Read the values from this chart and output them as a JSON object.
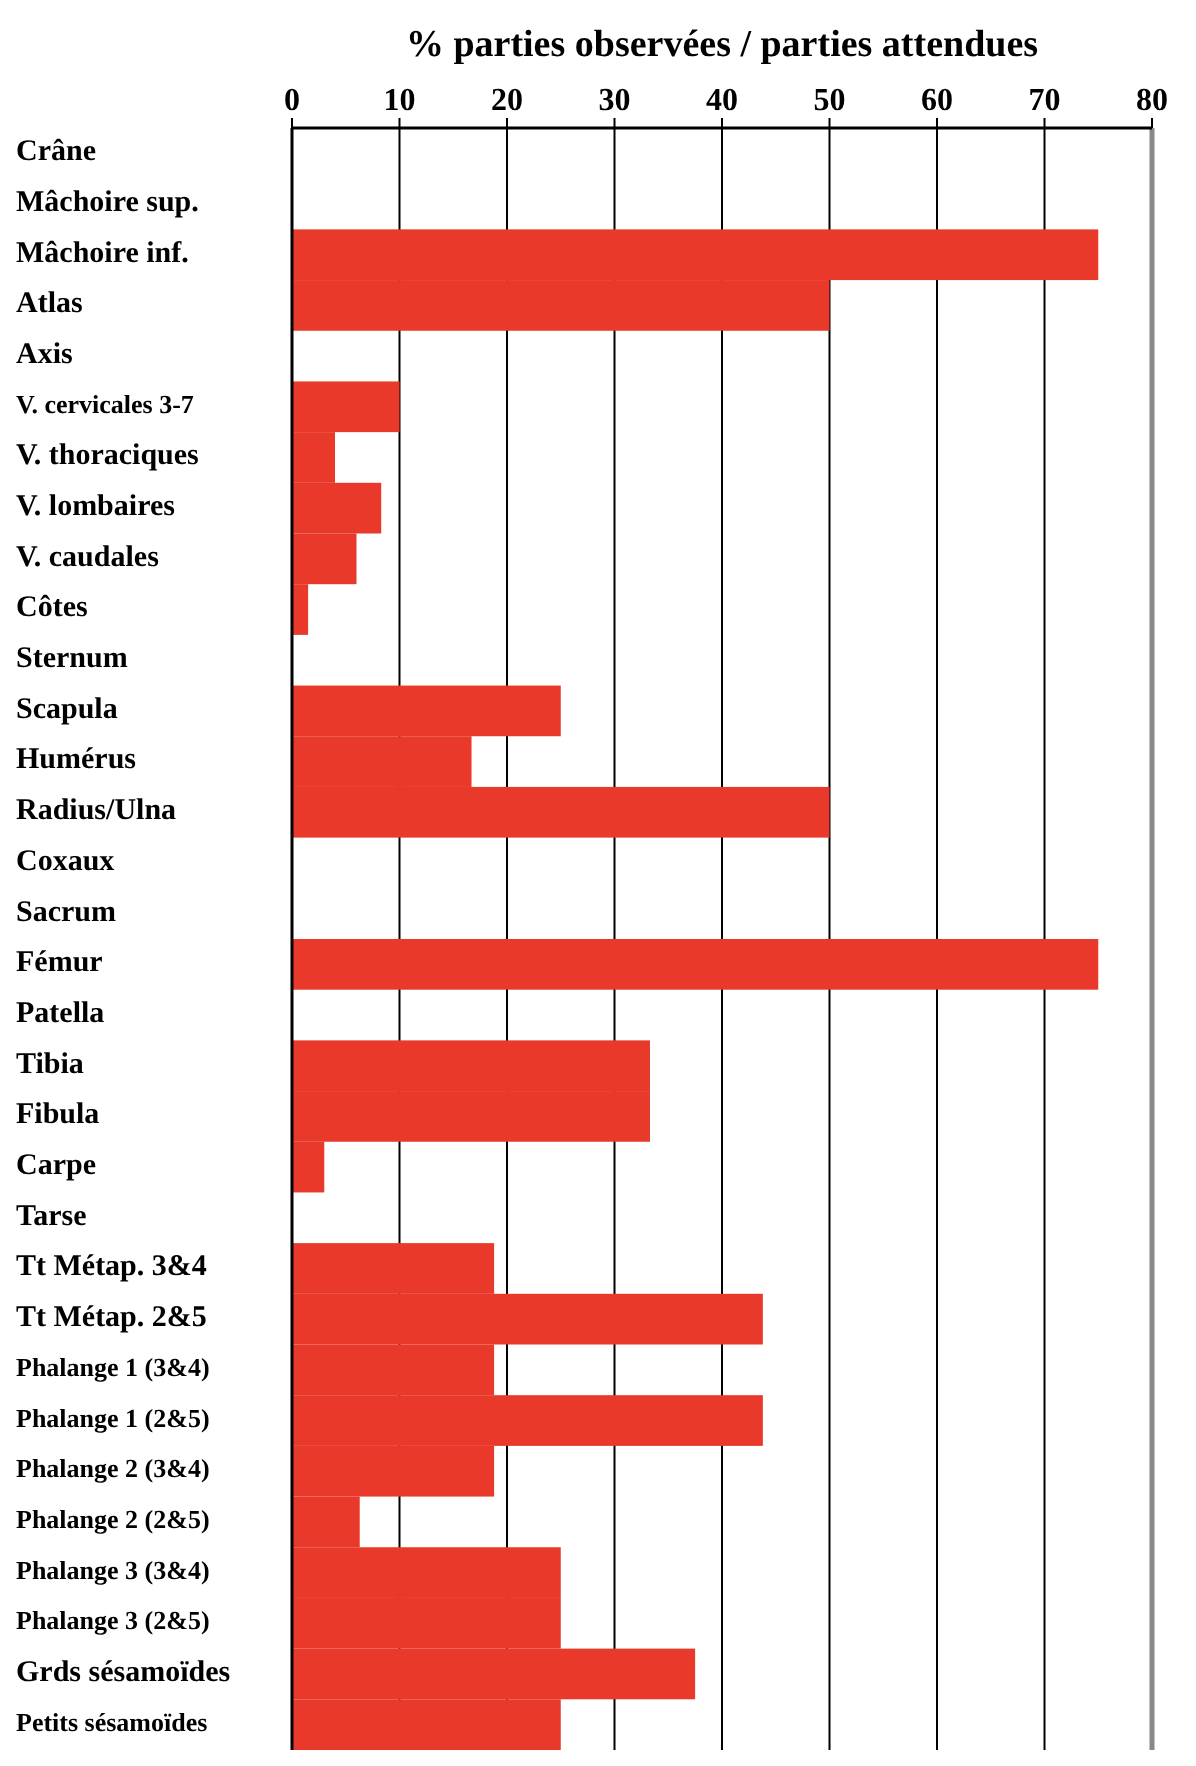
{
  "chart_data": {
    "type": "bar",
    "orientation": "horizontal",
    "title": "% parties observées / parties attendues",
    "categories": [
      "Crâne",
      "Mâchoire sup.",
      "Mâchoire inf.",
      "Atlas",
      "Axis",
      "V. cervicales 3-7",
      "V. thoraciques",
      "V. lombaires",
      "V. caudales",
      "Côtes",
      "Sternum",
      "Scapula",
      "Humérus",
      "Radius/Ulna",
      "Coxaux",
      "Sacrum",
      "Fémur",
      "Patella",
      "Tibia",
      "Fibula",
      "Carpe",
      "Tarse",
      "Tt Métap. 3&4",
      "Tt Métap. 2&5",
      "Phalange 1 (3&4)",
      "Phalange 1 (2&5)",
      "Phalange 2 (3&4)",
      "Phalange 2 (2&5)",
      "Phalange 3 (3&4)",
      "Phalange 3 (2&5)",
      "Grds sésamoïdes",
      "Petits sésamoïdes"
    ],
    "values": [
      0,
      0,
      75,
      50,
      0,
      10,
      4,
      8.3,
      6,
      1.5,
      0,
      25,
      16.7,
      50,
      0,
      0,
      75,
      0,
      33.3,
      33.3,
      3,
      0,
      18.8,
      43.8,
      18.8,
      43.8,
      18.8,
      6.3,
      25,
      25,
      37.5,
      25
    ],
    "color": "#e8392a",
    "xlim": [
      0,
      80
    ],
    "xticks": [
      0,
      10,
      20,
      30,
      40,
      50,
      60,
      70,
      80
    ],
    "grid": "x"
  }
}
